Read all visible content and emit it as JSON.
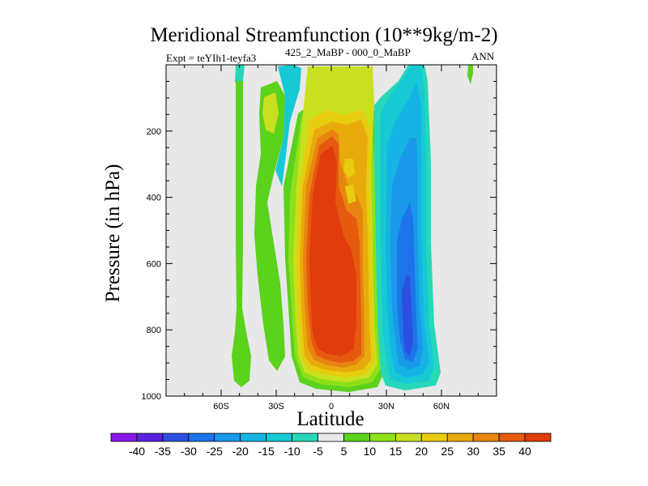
{
  "chart_data": {
    "type": "contour",
    "title": "Meridional Streamfunction (10**9kg/m-2)",
    "subtitle_left": "Expt = teYIh1-teyfa3",
    "subtitle_center": "425_2_MaBP - 000_0_MaBP",
    "subtitle_right": "ANN",
    "xlabel": "Latitude",
    "ylabel": "Pressure (in hPa)",
    "xlim": [
      -90,
      90
    ],
    "ylim": [
      1000,
      0
    ],
    "x_ticks": [
      {
        "value": -60,
        "label": "60S"
      },
      {
        "value": -30,
        "label": "30S"
      },
      {
        "value": 0,
        "label": "0"
      },
      {
        "value": 30,
        "label": "30N"
      },
      {
        "value": 60,
        "label": "60N"
      }
    ],
    "y_ticks": [
      200,
      400,
      600,
      800,
      1000
    ],
    "levels": [
      -40,
      -35,
      -30,
      -25,
      -20,
      -15,
      -10,
      -5,
      5,
      10,
      15,
      20,
      25,
      30,
      35,
      40
    ],
    "colors": [
      "#8a16e8",
      "#5a22e0",
      "#2c4fe0",
      "#1d74ea",
      "#1a99ea",
      "#15b4e4",
      "#17c9d4",
      "#27d8b8",
      "#e8e8e8",
      "#5bd21c",
      "#8ee01a",
      "#c8e020",
      "#e8cc10",
      "#e8aa0c",
      "#e88410",
      "#e65a10",
      "#e03c0c"
    ],
    "features": [
      {
        "name": "hadley-north",
        "lat": [
          -12,
          27
        ],
        "top_p": 160,
        "bottom_p": 970,
        "peak": 40
      },
      {
        "name": "ferrel-south-band",
        "lat": [
          -28,
          -20
        ],
        "top_p": 50,
        "bottom_p": 960,
        "peak": 10
      },
      {
        "name": "polar-south-band",
        "lat": [
          -52,
          -46
        ],
        "top_p": 0,
        "bottom_p": 960,
        "peak": 10
      },
      {
        "name": "subtropical-north-cell",
        "lat": [
          30,
          58
        ],
        "top_p": 0,
        "bottom_p": 980,
        "peak": -35
      },
      {
        "name": "high-lat-north-blob",
        "lat": [
          72,
          76
        ],
        "top_p": 0,
        "bottom_p": 50,
        "peak": 10
      }
    ]
  }
}
